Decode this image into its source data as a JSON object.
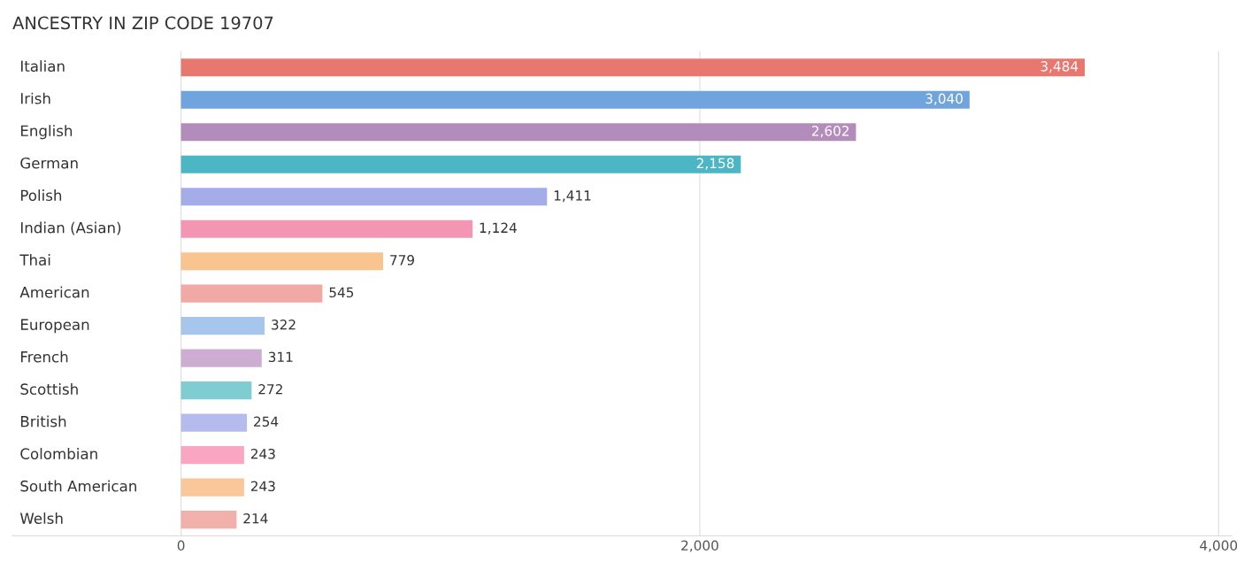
{
  "chart_data": {
    "type": "bar",
    "orientation": "horizontal",
    "title": "ANCESTRY IN ZIP CODE 19707",
    "categories": [
      "Italian",
      "Irish",
      "English",
      "German",
      "Polish",
      "Indian (Asian)",
      "Thai",
      "American",
      "European",
      "French",
      "Scottish",
      "British",
      "Colombian",
      "South American",
      "Welsh"
    ],
    "values": [
      3484,
      3040,
      2602,
      2158,
      1411,
      1124,
      779,
      545,
      322,
      311,
      272,
      254,
      243,
      243,
      214
    ],
    "value_labels": [
      "3,484",
      "3,040",
      "2,602",
      "2,158",
      "1,411",
      "1,124",
      "779",
      "545",
      "322",
      "311",
      "272",
      "254",
      "243",
      "243",
      "214"
    ],
    "colors": [
      "#e8776f",
      "#6fa4de",
      "#b48cbc",
      "#4db6c4",
      "#a5acea",
      "#f595b4",
      "#f9c48f",
      "#f0a9a4",
      "#a6c6ec",
      "#cdaed2",
      "#7fcdd2",
      "#b6bbee",
      "#f8a6c1",
      "#f9c79a",
      "#f2b0ab"
    ],
    "xlim": [
      -650,
      4050
    ],
    "xticks": [
      {
        "value": 0,
        "label": "0"
      },
      {
        "value": 2000,
        "label": "2,000"
      },
      {
        "value": 4000,
        "label": "4,000"
      }
    ],
    "grid": "x",
    "legend": false
  }
}
